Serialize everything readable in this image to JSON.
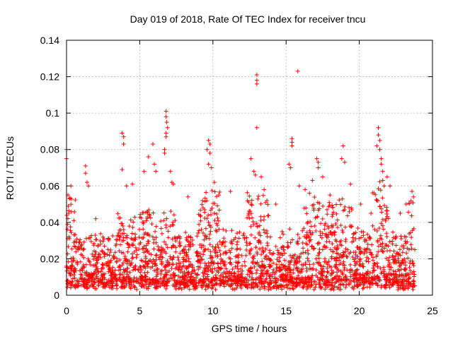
{
  "chart_data": {
    "type": "scatter",
    "title": "Day 019 of 2018, Rate Of TEC Index for receiver tncu",
    "xlabel": "GPS time / hours",
    "ylabel": "ROTI / TECUs",
    "xlim": [
      0,
      25
    ],
    "ylim": [
      0,
      0.14
    ],
    "xticks": [
      0,
      5,
      10,
      15,
      20,
      25
    ],
    "xtick_labels": [
      "0",
      "5",
      "10",
      "15",
      "20",
      "25"
    ],
    "yticks": [
      0,
      0.02,
      0.04,
      0.06,
      0.08,
      0.1,
      0.12,
      0.14
    ],
    "ytick_labels": [
      "0",
      "0.02",
      "0.04",
      "0.06",
      "0.08",
      "0.1",
      "0.12",
      "0.14"
    ],
    "grid": true,
    "marker": "plus",
    "color": "#ff0000",
    "series": [
      {
        "name": "ROTI",
        "points": [
          [
            0.0,
            0.075
          ],
          [
            0.0,
            0.08
          ],
          [
            0.1,
            0.055
          ],
          [
            0.2,
            0.053
          ],
          [
            0.3,
            0.06
          ],
          [
            0.15,
            0.045
          ],
          [
            0.5,
            0.041
          ],
          [
            1.3,
            0.071
          ],
          [
            1.3,
            0.067
          ],
          [
            1.4,
            0.062
          ],
          [
            1.5,
            0.06
          ],
          [
            2.0,
            0.042
          ],
          [
            3.8,
            0.089
          ],
          [
            3.9,
            0.087
          ],
          [
            3.9,
            0.083
          ],
          [
            3.8,
            0.069
          ],
          [
            4.1,
            0.06
          ],
          [
            4.5,
            0.061
          ],
          [
            5.3,
            0.068
          ],
          [
            5.6,
            0.076
          ],
          [
            5.9,
            0.083
          ],
          [
            6.0,
            0.072
          ],
          [
            6.1,
            0.068
          ],
          [
            6.8,
            0.101
          ],
          [
            6.8,
            0.098
          ],
          [
            6.85,
            0.095
          ],
          [
            6.9,
            0.092
          ],
          [
            6.8,
            0.089
          ],
          [
            6.8,
            0.087
          ],
          [
            6.7,
            0.08
          ],
          [
            6.7,
            0.078
          ],
          [
            7.1,
            0.068
          ],
          [
            7.2,
            0.062
          ],
          [
            7.3,
            0.061
          ],
          [
            8.3,
            0.054
          ],
          [
            9.6,
            0.08
          ],
          [
            9.7,
            0.085
          ],
          [
            9.8,
            0.083
          ],
          [
            9.8,
            0.078
          ],
          [
            9.7,
            0.072
          ],
          [
            9.9,
            0.07
          ],
          [
            10.1,
            0.062
          ],
          [
            10.4,
            0.055
          ],
          [
            11.2,
            0.057
          ],
          [
            12.6,
            0.075
          ],
          [
            12.8,
            0.068
          ],
          [
            12.9,
            0.066
          ],
          [
            13.0,
            0.121
          ],
          [
            13.0,
            0.118
          ],
          [
            13.0,
            0.116
          ],
          [
            13.0,
            0.092
          ],
          [
            13.3,
            0.065
          ],
          [
            13.5,
            0.058
          ],
          [
            14.3,
            0.05
          ],
          [
            15.2,
            0.072
          ],
          [
            15.3,
            0.07
          ],
          [
            15.4,
            0.086
          ],
          [
            15.4,
            0.084
          ],
          [
            15.4,
            0.082
          ],
          [
            15.8,
            0.123
          ],
          [
            15.9,
            0.06
          ],
          [
            16.3,
            0.058
          ],
          [
            16.6,
            0.056
          ],
          [
            16.8,
            0.063
          ],
          [
            17.1,
            0.075
          ],
          [
            17.2,
            0.073
          ],
          [
            17.2,
            0.07
          ],
          [
            17.5,
            0.065
          ],
          [
            18.0,
            0.055
          ],
          [
            18.8,
            0.075
          ],
          [
            18.9,
            0.082
          ],
          [
            19.0,
            0.073
          ],
          [
            19.4,
            0.061
          ],
          [
            20.1,
            0.05
          ],
          [
            21.2,
            0.082
          ],
          [
            21.3,
            0.092
          ],
          [
            21.3,
            0.088
          ],
          [
            21.4,
            0.085
          ],
          [
            21.4,
            0.08
          ],
          [
            21.5,
            0.075
          ],
          [
            21.5,
            0.072
          ],
          [
            21.6,
            0.068
          ],
          [
            21.6,
            0.063
          ],
          [
            21.7,
            0.06
          ],
          [
            21.9,
            0.065
          ],
          [
            22.1,
            0.06
          ],
          [
            22.8,
            0.045
          ],
          [
            23.2,
            0.05
          ],
          [
            23.6,
            0.057
          ],
          [
            23.7,
            0.054
          ]
        ]
      }
    ]
  }
}
